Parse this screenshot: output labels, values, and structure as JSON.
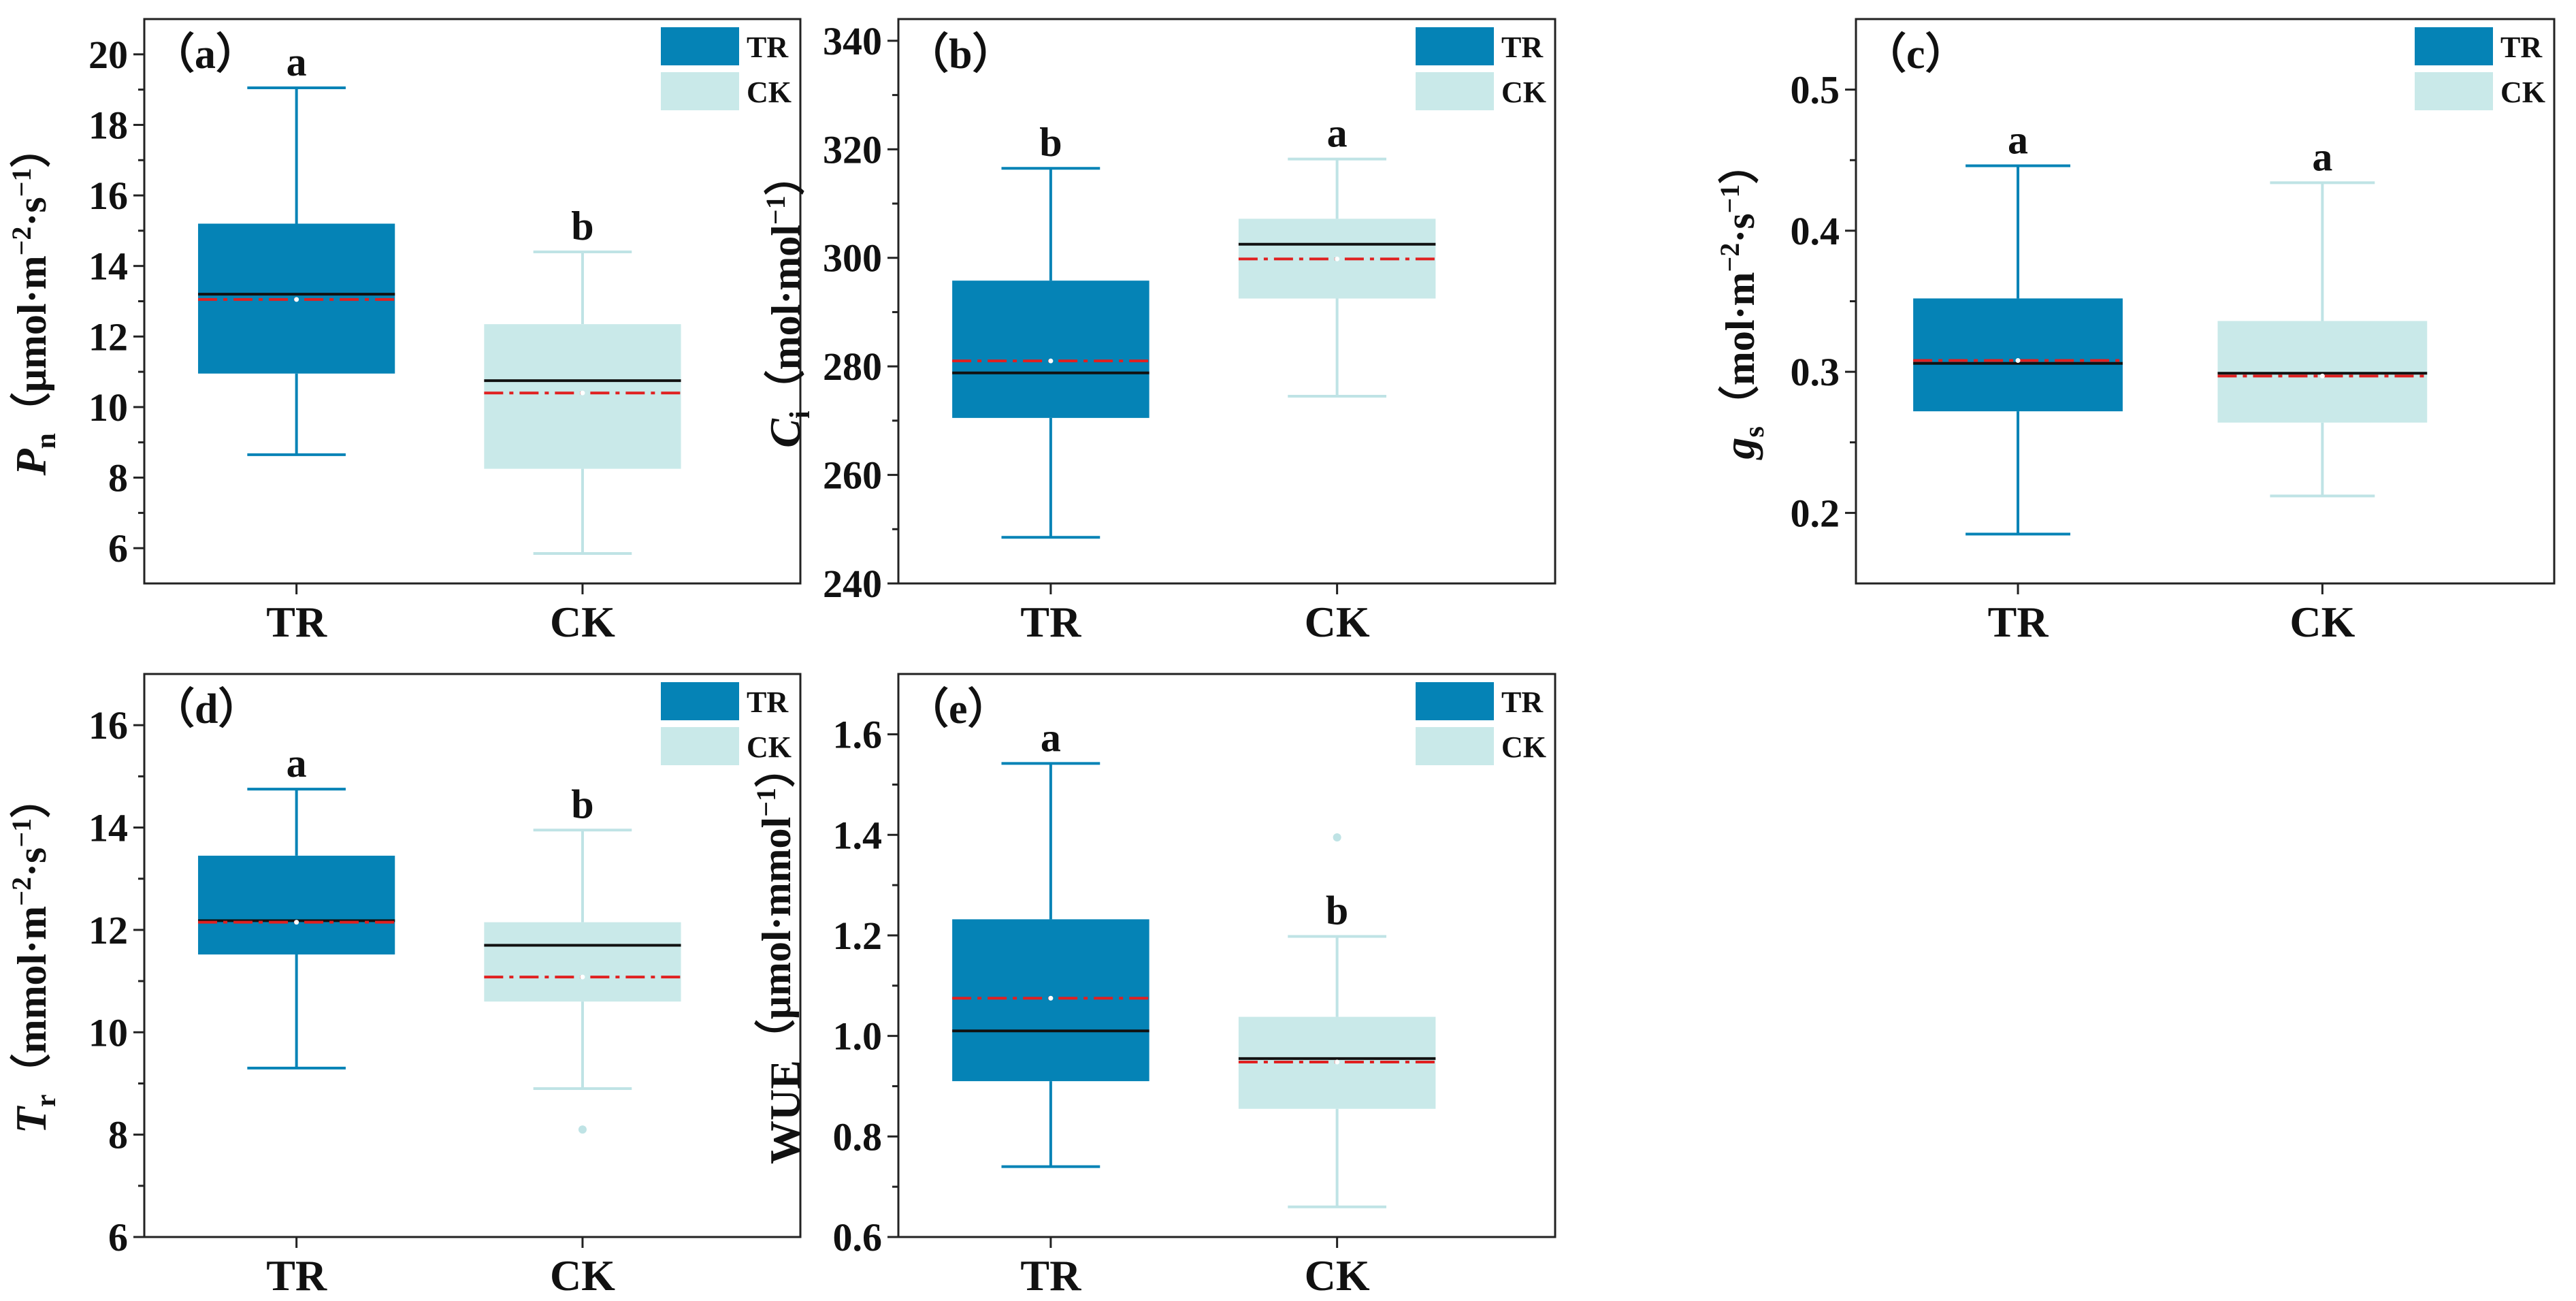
{
  "colors": {
    "tr_fill": "#0583b6",
    "tr_line": "#0583b6",
    "ck_fill": "#c9e9e9",
    "ck_line": "#bfe3e5",
    "median": "#111111",
    "mean": "#e02020"
  },
  "legend": [
    "TR",
    "CK"
  ],
  "chart_data": [
    {
      "id": "a",
      "type": "box",
      "panel_label": "（a）",
      "ylabel": {
        "main": "P",
        "sub": "n",
        "unit": "（μmol·m",
        "sup1": "−2",
        "mid": "·s",
        "sup2": "−1",
        "end": "）"
      },
      "ylim": [
        5,
        21
      ],
      "yticks": [
        6,
        8,
        10,
        12,
        14,
        16,
        18,
        20
      ],
      "tick_decimals": 0,
      "series": [
        {
          "name": "TR",
          "whisker_low": 8.65,
          "q1": 10.95,
          "median": 13.2,
          "mean": 13.05,
          "q3": 15.2,
          "whisker_high": 19.05,
          "outliers": [],
          "letter": "a"
        },
        {
          "name": "CK",
          "whisker_low": 5.85,
          "q1": 8.25,
          "median": 10.75,
          "mean": 10.4,
          "q3": 12.35,
          "whisker_high": 14.4,
          "outliers": [],
          "letter": "b"
        }
      ]
    },
    {
      "id": "b",
      "type": "box",
      "panel_label": "（b）",
      "ylabel": {
        "main": "C",
        "sub": "i",
        "unit": "（mol·mol",
        "sup1": "−1",
        "mid": "",
        "sup2": "",
        "end": "）"
      },
      "ylim": [
        240,
        344
      ],
      "yticks": [
        240,
        260,
        280,
        300,
        320,
        340
      ],
      "tick_decimals": 0,
      "series": [
        {
          "name": "TR",
          "whisker_low": 248.5,
          "q1": 270.5,
          "median": 278.8,
          "mean": 281,
          "q3": 295.8,
          "whisker_high": 316.5,
          "outliers": [],
          "letter": "b"
        },
        {
          "name": "CK",
          "whisker_low": 274.5,
          "q1": 292.5,
          "median": 302.5,
          "mean": 299.8,
          "q3": 307.2,
          "whisker_high": 318.2,
          "outliers": [],
          "letter": "a"
        }
      ]
    },
    {
      "id": "c",
      "type": "box",
      "panel_label": "（c）",
      "ylabel": {
        "main": "g",
        "sub": "s",
        "unit": "（mol·m",
        "sup1": "−2",
        "mid": "·s",
        "sup2": "−1",
        "end": "）"
      },
      "ylim": [
        0.15,
        0.55
      ],
      "yticks": [
        0.2,
        0.3,
        0.4,
        0.5
      ],
      "tick_decimals": 1,
      "series": [
        {
          "name": "TR",
          "whisker_low": 0.185,
          "q1": 0.272,
          "median": 0.306,
          "mean": 0.308,
          "q3": 0.352,
          "whisker_high": 0.446,
          "outliers": [],
          "letter": "a"
        },
        {
          "name": "CK",
          "whisker_low": 0.212,
          "q1": 0.264,
          "median": 0.299,
          "mean": 0.297,
          "q3": 0.336,
          "whisker_high": 0.434,
          "outliers": [],
          "letter": "a"
        }
      ]
    },
    {
      "id": "d",
      "type": "box",
      "panel_label": "（d）",
      "ylabel": {
        "main": "T",
        "sub": "r",
        "unit": "（mmol·m",
        "sup1": "−2",
        "mid": "·s",
        "sup2": "−1",
        "end": "）"
      },
      "ylim": [
        6,
        17
      ],
      "yticks": [
        6,
        8,
        10,
        12,
        14,
        16
      ],
      "tick_decimals": 0,
      "series": [
        {
          "name": "TR",
          "whisker_low": 9.3,
          "q1": 11.52,
          "median": 12.18,
          "mean": 12.15,
          "q3": 13.45,
          "whisker_high": 14.75,
          "outliers": [],
          "letter": "a"
        },
        {
          "name": "CK",
          "whisker_low": 8.9,
          "q1": 10.6,
          "median": 11.7,
          "mean": 11.08,
          "q3": 12.15,
          "whisker_high": 13.95,
          "outliers": [
            8.1
          ],
          "letter": "b"
        }
      ]
    },
    {
      "id": "e",
      "type": "box",
      "panel_label": "（e）",
      "ylabel": {
        "main": "WUE",
        "sub": "",
        "unit": "（μmol·mmol",
        "sup1": "−1",
        "mid": "",
        "sup2": "",
        "end": "）"
      },
      "ylim": [
        0.6,
        1.72
      ],
      "yticks": [
        0.6,
        0.8,
        1.0,
        1.2,
        1.4,
        1.6
      ],
      "tick_decimals": 1,
      "series": [
        {
          "name": "TR",
          "whisker_low": 0.74,
          "q1": 0.91,
          "median": 1.01,
          "mean": 1.075,
          "q3": 1.232,
          "whisker_high": 1.542,
          "outliers": [],
          "letter": "a"
        },
        {
          "name": "CK",
          "whisker_low": 0.66,
          "q1": 0.855,
          "median": 0.955,
          "mean": 0.948,
          "q3": 1.038,
          "whisker_high": 1.198,
          "outliers": [
            1.395
          ],
          "letter": "b"
        }
      ]
    }
  ]
}
